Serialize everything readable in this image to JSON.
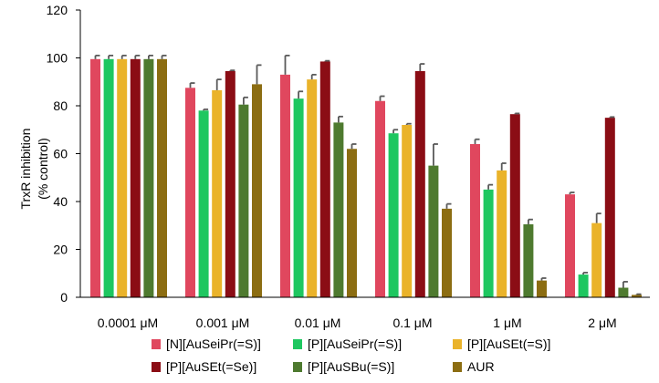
{
  "chart_data": {
    "type": "bar",
    "title": "",
    "xlabel": "",
    "ylabel": [
      "TrxR inhibition",
      "(% control)"
    ],
    "ylim": [
      0,
      120
    ],
    "yticks": [
      0,
      20,
      40,
      60,
      80,
      100,
      120
    ],
    "grid": false,
    "legend_position": "bottom",
    "categories": [
      "0.0001 μM",
      "0.001 μM",
      "0.01 μM",
      "0.1 μM",
      "1 μM",
      "2 μM"
    ],
    "series": [
      {
        "name": "[N][AuSeiPr(=S)]",
        "color": "#e0475e",
        "values": [
          99.5,
          87.5,
          93,
          82,
          64,
          43
        ],
        "errors": [
          1.5,
          2,
          8,
          2,
          2,
          0.8
        ]
      },
      {
        "name": "[P][AuSeiPr(=S)]",
        "color": "#1ec760",
        "values": [
          99.5,
          78,
          83,
          68.5,
          45,
          9.5
        ],
        "errors": [
          1.5,
          0.5,
          3,
          1.5,
          2,
          0.8
        ]
      },
      {
        "name": "[P][AuSEt(=S)]",
        "color": "#eab32a",
        "values": [
          99.5,
          86.5,
          91,
          72,
          53,
          31
        ],
        "errors": [
          1.5,
          4.5,
          2,
          0.5,
          3,
          4
        ]
      },
      {
        "name": "[P][AuSEt(=Se)]",
        "color": "#8b0d15",
        "values": [
          99.5,
          94.5,
          98.5,
          94.5,
          76.5,
          75
        ],
        "errors": [
          1.5,
          0.3,
          0.3,
          3,
          0.3,
          0.3
        ]
      },
      {
        "name": "[P][AuSBu(=S)]",
        "color": "#4e7a2f",
        "values": [
          99.5,
          80.5,
          73,
          55,
          30.5,
          4
        ],
        "errors": [
          1.5,
          3,
          2.5,
          9,
          2,
          2.5
        ]
      },
      {
        "name": "AUR",
        "color": "#8c6d12",
        "values": [
          99.5,
          89,
          62,
          37,
          7,
          1
        ],
        "errors": [
          1.5,
          8,
          2,
          2,
          1,
          0.3
        ]
      }
    ]
  }
}
